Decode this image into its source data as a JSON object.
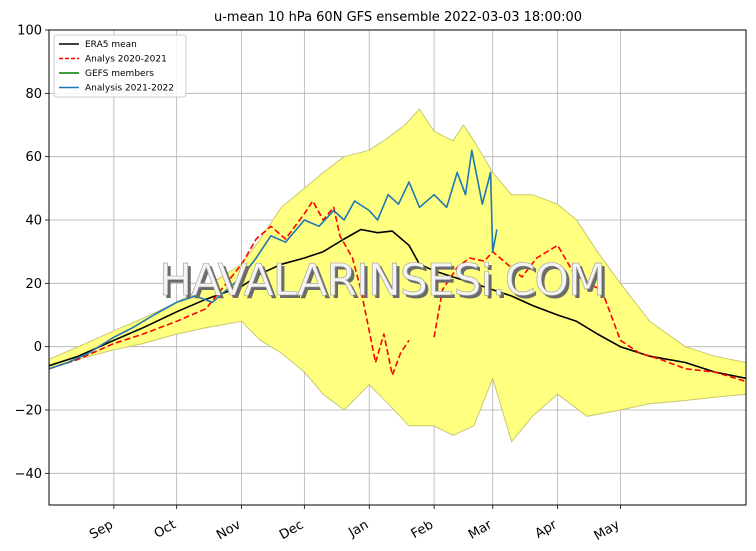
{
  "chart_data": {
    "type": "line",
    "title": "u-mean 10 hPa 60N GFS ensemble 2022-03-03 18:00:00",
    "xlabel": "",
    "ylabel": "",
    "ylim": [
      -50,
      100
    ],
    "yticks": [
      -40,
      -20,
      0,
      20,
      40,
      60,
      80,
      100
    ],
    "xlim": [
      "2021-08-01",
      "2022-06-30"
    ],
    "x_tick_labels": [
      {
        "date": "2021-09-01",
        "label": "Sep"
      },
      {
        "date": "2021-10-01",
        "label": "Oct"
      },
      {
        "date": "2021-11-01",
        "label": "Nov"
      },
      {
        "date": "2021-12-01",
        "label": "Dec"
      },
      {
        "date": "2022-01-01",
        "label": "Jan"
      },
      {
        "date": "2022-02-01",
        "label": "Feb"
      },
      {
        "date": "2022-03-01",
        "label": "Mar"
      },
      {
        "date": "2022-04-01",
        "label": "Apr"
      },
      {
        "date": "2022-05-01",
        "label": "May"
      }
    ],
    "grid": true,
    "legend": "top-left",
    "band": {
      "color": "#ffff80",
      "edge_color": "#c8c870",
      "upper": [
        [
          "2021-08-01",
          -4
        ],
        [
          "2021-08-15",
          0
        ],
        [
          "2021-09-01",
          5
        ],
        [
          "2021-09-15",
          9
        ],
        [
          "2021-10-01",
          14
        ],
        [
          "2021-10-15",
          19
        ],
        [
          "2021-11-01",
          26
        ],
        [
          "2021-11-10",
          34
        ],
        [
          "2021-11-20",
          44
        ],
        [
          "2021-12-01",
          50
        ],
        [
          "2021-12-10",
          55
        ],
        [
          "2021-12-20",
          60
        ],
        [
          "2022-01-01",
          62
        ],
        [
          "2022-01-10",
          66
        ],
        [
          "2022-01-18",
          70
        ],
        [
          "2022-01-25",
          75
        ],
        [
          "2022-02-01",
          68
        ],
        [
          "2022-02-10",
          65
        ],
        [
          "2022-02-15",
          70
        ],
        [
          "2022-02-20",
          65
        ],
        [
          "2022-03-01",
          55
        ],
        [
          "2022-03-10",
          48
        ],
        [
          "2022-03-20",
          48
        ],
        [
          "2022-04-01",
          45
        ],
        [
          "2022-04-10",
          40
        ],
        [
          "2022-04-20",
          30
        ],
        [
          "2022-05-01",
          20
        ],
        [
          "2022-05-15",
          8
        ],
        [
          "2022-06-01",
          0
        ],
        [
          "2022-06-15",
          -3
        ],
        [
          "2022-06-30",
          -5
        ]
      ],
      "lower": [
        [
          "2021-08-01",
          -7
        ],
        [
          "2021-08-15",
          -4
        ],
        [
          "2021-09-01",
          -1
        ],
        [
          "2021-09-15",
          1
        ],
        [
          "2021-10-01",
          4
        ],
        [
          "2021-10-15",
          6
        ],
        [
          "2021-11-01",
          8
        ],
        [
          "2021-11-10",
          2
        ],
        [
          "2021-11-20",
          -2
        ],
        [
          "2021-12-01",
          -8
        ],
        [
          "2021-12-10",
          -15
        ],
        [
          "2021-12-20",
          -20
        ],
        [
          "2022-01-01",
          -12
        ],
        [
          "2022-01-10",
          -18
        ],
        [
          "2022-01-20",
          -25
        ],
        [
          "2022-02-01",
          -25
        ],
        [
          "2022-02-10",
          -28
        ],
        [
          "2022-02-20",
          -25
        ],
        [
          "2022-03-01",
          -10
        ],
        [
          "2022-03-10",
          -30
        ],
        [
          "2022-03-20",
          -22
        ],
        [
          "2022-04-01",
          -15
        ],
        [
          "2022-04-15",
          -22
        ],
        [
          "2022-05-01",
          -20
        ],
        [
          "2022-05-15",
          -18
        ],
        [
          "2022-06-01",
          -17
        ],
        [
          "2022-06-15",
          -16
        ],
        [
          "2022-06-30",
          -15
        ]
      ]
    },
    "series": [
      {
        "name": "ERA5 mean",
        "color": "#000000",
        "dash": "",
        "width": 1.6,
        "points": [
          [
            "2021-08-01",
            -6
          ],
          [
            "2021-08-15",
            -3
          ],
          [
            "2021-09-01",
            2
          ],
          [
            "2021-09-15",
            6
          ],
          [
            "2021-10-01",
            11
          ],
          [
            "2021-10-15",
            15
          ],
          [
            "2021-11-01",
            19
          ],
          [
            "2021-11-10",
            23
          ],
          [
            "2021-11-20",
            26
          ],
          [
            "2021-12-01",
            28
          ],
          [
            "2021-12-10",
            30
          ],
          [
            "2021-12-20",
            34
          ],
          [
            "2021-12-28",
            37
          ],
          [
            "2022-01-05",
            36
          ],
          [
            "2022-01-12",
            36.5
          ],
          [
            "2022-01-20",
            32
          ],
          [
            "2022-01-25",
            26
          ],
          [
            "2022-02-01",
            24
          ],
          [
            "2022-02-10",
            22
          ],
          [
            "2022-02-20",
            20
          ],
          [
            "2022-03-01",
            18
          ],
          [
            "2022-03-10",
            16
          ],
          [
            "2022-03-20",
            13
          ],
          [
            "2022-04-01",
            10
          ],
          [
            "2022-04-10",
            8
          ],
          [
            "2022-04-20",
            4
          ],
          [
            "2022-05-01",
            0
          ],
          [
            "2022-05-15",
            -3
          ],
          [
            "2022-06-01",
            -5
          ],
          [
            "2022-06-15",
            -8
          ],
          [
            "2022-06-30",
            -10
          ]
        ]
      },
      {
        "name": "Analys 2020-2021",
        "color": "#ff0000",
        "dash": "6,3",
        "width": 1.6,
        "points": [
          [
            "2021-08-01",
            -7
          ],
          [
            "2021-08-15",
            -4
          ],
          [
            "2021-09-01",
            1
          ],
          [
            "2021-09-15",
            4
          ],
          [
            "2021-10-01",
            8
          ],
          [
            "2021-10-15",
            12
          ],
          [
            "2021-11-01",
            26
          ],
          [
            "2021-11-08",
            34
          ],
          [
            "2021-11-15",
            38
          ],
          [
            "2021-11-22",
            34
          ],
          [
            "2021-12-01",
            42
          ],
          [
            "2021-12-05",
            46
          ],
          [
            "2021-12-10",
            40
          ],
          [
            "2021-12-15",
            44
          ],
          [
            "2021-12-18",
            35
          ],
          [
            "2021-12-24",
            28
          ],
          [
            "2021-12-28",
            18
          ],
          [
            "2022-01-01",
            5
          ],
          [
            "2022-01-04",
            -5
          ],
          [
            "2022-01-08",
            4
          ],
          [
            "2022-01-12",
            -9
          ],
          [
            "2022-01-16",
            -2
          ],
          [
            "2022-01-20",
            2
          ]
        ],
        "points2": [
          [
            "2022-02-01",
            3
          ],
          [
            "2022-02-05",
            18
          ],
          [
            "2022-02-12",
            25
          ],
          [
            "2022-02-18",
            28
          ],
          [
            "2022-02-25",
            27
          ],
          [
            "2022-03-01",
            30
          ],
          [
            "2022-03-08",
            26
          ],
          [
            "2022-03-15",
            22
          ],
          [
            "2022-03-22",
            28
          ],
          [
            "2022-04-01",
            32
          ],
          [
            "2022-04-08",
            24
          ],
          [
            "2022-04-15",
            20
          ],
          [
            "2022-04-22",
            18
          ],
          [
            "2022-05-01",
            2
          ],
          [
            "2022-05-10",
            -2
          ],
          [
            "2022-05-20",
            -4
          ],
          [
            "2022-06-01",
            -7
          ],
          [
            "2022-06-15",
            -8
          ],
          [
            "2022-06-30",
            -11
          ]
        ]
      },
      {
        "name": "GEFS members",
        "color": "#008000",
        "dash": "",
        "width": 1.4,
        "points": []
      },
      {
        "name": "Analysis 2021-2022",
        "color": "#1f77b4",
        "dash": "",
        "width": 1.6,
        "points": [
          [
            "2021-08-01",
            -7
          ],
          [
            "2021-08-10",
            -5
          ],
          [
            "2021-08-20",
            -2
          ],
          [
            "2021-09-01",
            3
          ],
          [
            "2021-09-10",
            6
          ],
          [
            "2021-09-20",
            10
          ],
          [
            "2021-10-01",
            14
          ],
          [
            "2021-10-10",
            16
          ],
          [
            "2021-10-18",
            14
          ],
          [
            "2021-10-25",
            18
          ],
          [
            "2021-11-01",
            22
          ],
          [
            "2021-11-08",
            28
          ],
          [
            "2021-11-15",
            35
          ],
          [
            "2021-11-22",
            33
          ],
          [
            "2021-12-01",
            40
          ],
          [
            "2021-12-08",
            38
          ],
          [
            "2021-12-15",
            43
          ],
          [
            "2021-12-20",
            40
          ],
          [
            "2021-12-25",
            46
          ],
          [
            "2022-01-01",
            43
          ],
          [
            "2022-01-05",
            40
          ],
          [
            "2022-01-10",
            48
          ],
          [
            "2022-01-15",
            45
          ],
          [
            "2022-01-20",
            52
          ],
          [
            "2022-01-25",
            44
          ],
          [
            "2022-02-01",
            48
          ],
          [
            "2022-02-07",
            44
          ],
          [
            "2022-02-12",
            55
          ],
          [
            "2022-02-16",
            48
          ],
          [
            "2022-02-19",
            62
          ],
          [
            "2022-02-24",
            45
          ],
          [
            "2022-02-28",
            55
          ],
          [
            "2022-03-01",
            30
          ],
          [
            "2022-03-03",
            37
          ]
        ]
      }
    ]
  },
  "watermark": {
    "text": "HAVALARINSESi.COM"
  }
}
